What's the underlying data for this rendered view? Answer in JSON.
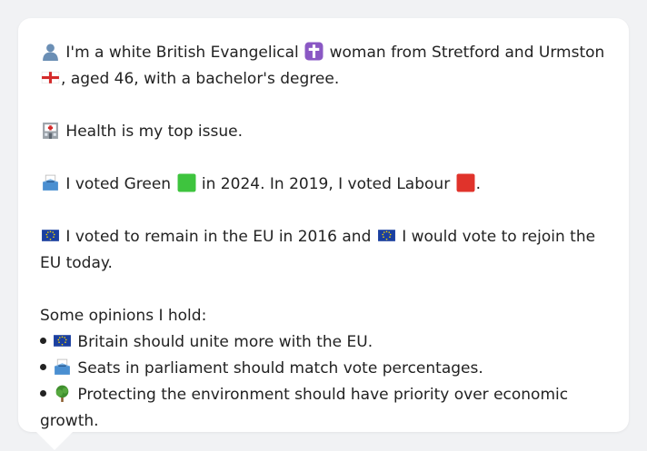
{
  "profile": {
    "intro": {
      "part1": "I'm a white British Evangelical",
      "part2": "woman from Stretford and Urmston",
      "part3": ",",
      "part4": "aged 46, with a bachelor's degree."
    },
    "issue": {
      "text": "Health is my top issue."
    },
    "vote": {
      "part1": "I voted Green",
      "part2": "in 2024. In 2019, I voted Labour",
      "part3": "."
    },
    "eu": {
      "part1": "I voted to remain in the EU in 2016 and",
      "part2": "I would vote to rejoin the EU",
      "part3": "today."
    },
    "opinions": {
      "heading": "Some opinions I hold:",
      "items": [
        "Britain should unite more with the EU.",
        "Seats in parliament should match vote percentages.",
        "Protecting the environment should have priority over economic growth."
      ]
    }
  },
  "icons": {
    "person": "person-silhouette-icon",
    "cross": "latin-cross-icon",
    "flag": "england-flag-icon",
    "hospital": "hospital-icon",
    "ballot": "ballot-box-icon",
    "green": "green-square-icon",
    "red": "red-square-icon",
    "eu": "eu-flag-icon",
    "tree": "tree-icon"
  },
  "colors": {
    "background": "#f1f2f4",
    "card": "#ffffff",
    "text": "#222222",
    "green": "#3ec43e",
    "red": "#e0332b",
    "eu_blue": "#1a3fa0",
    "cross_purple": "#8a58c4"
  }
}
